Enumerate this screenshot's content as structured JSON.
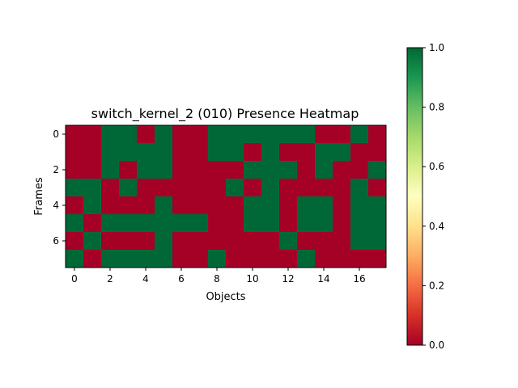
{
  "chart_data": {
    "type": "heatmap",
    "title": "switch_kernel_2 (010) Presence Heatmap",
    "xlabel": "Objects",
    "ylabel": "Frames",
    "x_ticks": [
      "0",
      "2",
      "4",
      "6",
      "8",
      "10",
      "12",
      "14",
      "16"
    ],
    "y_ticks": [
      "0",
      "2",
      "4",
      "6"
    ],
    "colorbar_ticks": [
      "0.0",
      "0.2",
      "0.4",
      "0.6",
      "0.8",
      "1.0"
    ],
    "vmin": 0,
    "vmax": 1,
    "colormap": [
      "#a50026",
      "#d73027",
      "#f46d43",
      "#fdae61",
      "#fee08b",
      "#ffffbf",
      "#d9ef8b",
      "#a6d96a",
      "#66bd63",
      "#1a9850",
      "#006837"
    ],
    "values": [
      [
        0,
        0,
        1,
        1,
        0,
        1,
        0,
        0,
        1,
        1,
        1,
        1,
        1,
        1,
        0,
        0,
        1,
        0
      ],
      [
        0,
        0,
        1,
        1,
        1,
        1,
        0,
        0,
        1,
        1,
        0,
        1,
        0,
        0,
        1,
        1,
        0,
        0
      ],
      [
        0,
        0,
        1,
        0,
        1,
        1,
        0,
        0,
        0,
        0,
        1,
        1,
        1,
        0,
        1,
        0,
        0,
        1
      ],
      [
        1,
        1,
        0,
        1,
        0,
        0,
        0,
        0,
        0,
        1,
        0,
        1,
        0,
        0,
        0,
        0,
        1,
        0
      ],
      [
        0,
        1,
        0,
        0,
        0,
        1,
        0,
        0,
        0,
        0,
        1,
        1,
        0,
        1,
        1,
        0,
        1,
        1
      ],
      [
        1,
        0,
        1,
        1,
        1,
        1,
        1,
        1,
        0,
        0,
        1,
        1,
        0,
        1,
        1,
        0,
        1,
        1
      ],
      [
        0,
        1,
        0,
        0,
        0,
        1,
        0,
        0,
        0,
        0,
        0,
        0,
        1,
        0,
        0,
        0,
        1,
        1
      ],
      [
        1,
        0,
        1,
        1,
        1,
        1,
        0,
        0,
        1,
        0,
        0,
        0,
        0,
        1,
        0,
        0,
        0,
        0
      ]
    ]
  }
}
